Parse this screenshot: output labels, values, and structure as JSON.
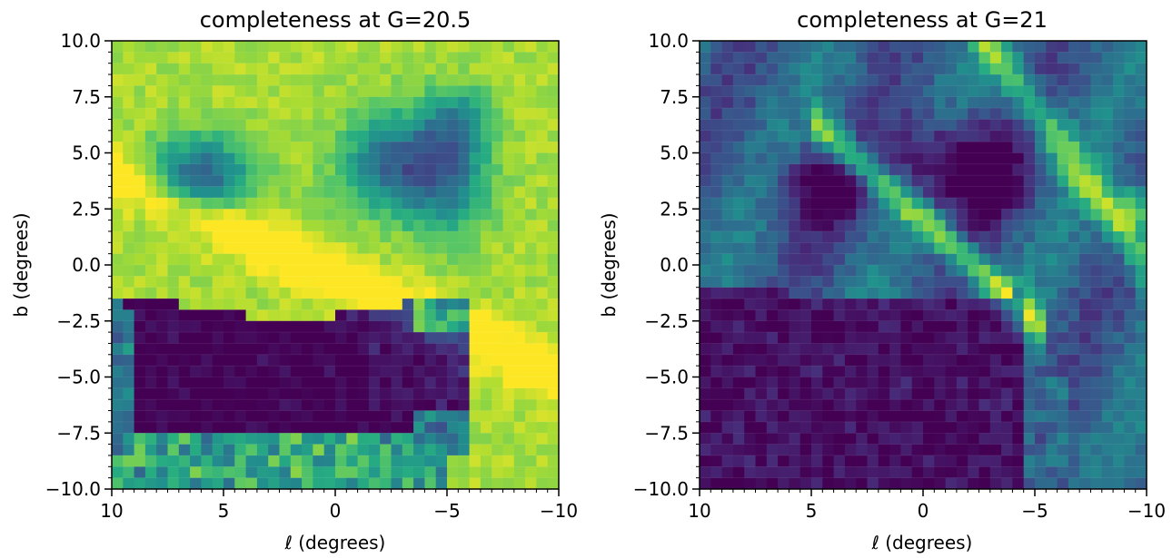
{
  "chart_data": [
    {
      "type": "heatmap",
      "title": "completeness at G=20.5",
      "xlabel": "ℓ (degrees)",
      "ylabel": "b (degrees)",
      "xlim": [
        10,
        -10
      ],
      "ylim": [
        -10,
        10
      ],
      "x_ticks": [
        10,
        5,
        0,
        -5,
        -10
      ],
      "x_tick_labels": [
        "10",
        "5",
        "0",
        "−5",
        "−10"
      ],
      "y_ticks": [
        10.0,
        7.5,
        5.0,
        2.5,
        0.0,
        -2.5,
        -5.0,
        -7.5,
        -10.0
      ],
      "y_tick_labels": [
        "10.0",
        "7.5",
        "5.0",
        "2.5",
        "0.0",
        "−2.5",
        "−5.0",
        "−7.5",
        "−10.0"
      ],
      "colormap": "viridis",
      "grid": "40x40 cells of 0.5 degrees",
      "regions": [
        {
          "feature": "high completeness background",
          "value": 0.95
        },
        {
          "feature": "dark dust lane",
          "l_range": [
            9,
            -3
          ],
          "b_range": [
            -8,
            -1.5
          ],
          "value": 0.02
        },
        {
          "feature": "dark patch",
          "l_range": [
            -2,
            -5.5
          ],
          "b_range": [
            -6,
            -3.5
          ],
          "value": 0.05
        },
        {
          "feature": "mid patches",
          "l_range": [
            8,
            3
          ],
          "b_range": [
            2.5,
            6
          ],
          "value": 0.5
        },
        {
          "feature": "mid patches",
          "l_range": [
            -1,
            -7
          ],
          "b_range": [
            1,
            7
          ],
          "value": 0.55
        },
        {
          "feature": "low mid band",
          "l_range": [
            10,
            -5
          ],
          "b_range": [
            -10,
            -7.5
          ],
          "value": 0.6
        }
      ]
    },
    {
      "type": "heatmap",
      "title": "completeness at G=21",
      "xlabel": "ℓ (degrees)",
      "ylabel": "b (degrees)",
      "xlim": [
        10,
        -10
      ],
      "ylim": [
        -10,
        10
      ],
      "x_ticks": [
        10,
        5,
        0,
        -5,
        -10
      ],
      "x_tick_labels": [
        "10",
        "5",
        "0",
        "−5",
        "−10"
      ],
      "y_ticks": [
        10.0,
        7.5,
        5.0,
        2.5,
        0.0,
        -2.5,
        -5.0,
        -7.5,
        -10.0
      ],
      "y_tick_labels": [
        "10.0",
        "7.5",
        "5.0",
        "2.5",
        "0.0",
        "−2.5",
        "−5.0",
        "−7.5",
        "−10.0"
      ],
      "colormap": "viridis",
      "grid": "40x40 cells of 0.5 degrees",
      "regions": [
        {
          "feature": "low-mid background",
          "value": 0.3
        },
        {
          "feature": "dark dust lane",
          "l_range": [
            10,
            -4.5
          ],
          "b_range": [
            -10,
            -1.5
          ],
          "value": 0.02
        },
        {
          "feature": "dark patches",
          "l_range": [
            6,
            -5
          ],
          "b_range": [
            2,
            6.5
          ],
          "value": 0.08
        },
        {
          "feature": "bright diagonal ridge",
          "l_range": [
            4,
            -5
          ],
          "b_range": [
            -2,
            3.5
          ],
          "value": 0.75
        },
        {
          "feature": "bright upper-right streak",
          "l_range": [
            -4,
            -10
          ],
          "b_range": [
            1,
            10
          ],
          "value": 0.7
        }
      ]
    }
  ]
}
